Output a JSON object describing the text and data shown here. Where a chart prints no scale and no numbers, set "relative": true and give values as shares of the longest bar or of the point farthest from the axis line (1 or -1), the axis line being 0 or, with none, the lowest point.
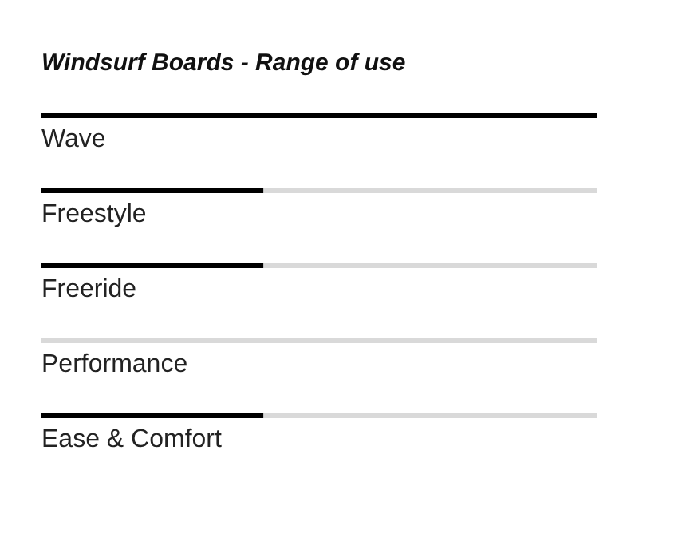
{
  "chart_data": {
    "type": "bar",
    "orientation": "horizontal",
    "relative": true,
    "stacked": true,
    "title": "Windsurf Boards - Range of use",
    "categories": [
      "Wave",
      "Freestyle",
      "Freeride",
      "Performance",
      "Ease & Comfort"
    ],
    "series": [
      {
        "color": "#000000",
        "values": [
          1,
          0.4,
          0.4,
          0,
          0.4
        ]
      },
      {
        "color": "#d9d9d9",
        "values": [
          0,
          0.6,
          0.6,
          1,
          0.6
        ]
      }
    ],
    "grid": false,
    "legend": false
  }
}
